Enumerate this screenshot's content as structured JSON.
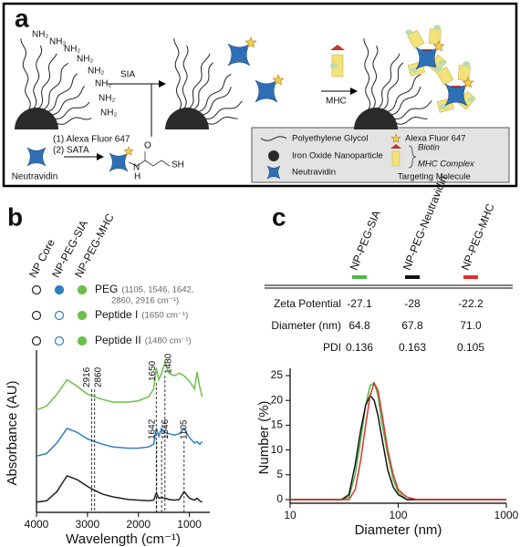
{
  "panel_a": {
    "label": "a",
    "amine_labels": [
      "NH₂",
      "NH₂",
      "NH₂",
      "NH₂",
      "NH₂",
      "NH₂",
      "NH₂",
      "NH₂"
    ],
    "step1": "SIA",
    "step2": "MHC",
    "reagents": [
      "(1) Alexa Fluor 647",
      "(2) SATA"
    ],
    "start": "Neutravidin",
    "sata_atoms": [
      "O",
      "N",
      "H",
      "SH"
    ],
    "legend": {
      "peg": "Polyethylene Glycol",
      "alexa": "Alexa Fluor 647",
      "iron": "Iron Oxide Nanoparticle",
      "neutravidin": "Neutravidin",
      "biotin": "Biotin",
      "mhc": "MHC Complex",
      "targeting": "Targeting Molecule"
    }
  },
  "panel_b": {
    "label": "b",
    "rows": [
      {
        "label": "PEG",
        "detail": [
          "(1105, 1546, 1642,",
          "2860, 2916 cm⁻¹)"
        ],
        "present": [
          false,
          true,
          true
        ]
      },
      {
        "label": "Peptide I",
        "detail": [
          "(1650 cm⁻¹)"
        ],
        "present": [
          false,
          false,
          true
        ]
      },
      {
        "label": "Peptide II",
        "detail": [
          "(1480 cm⁻¹)"
        ],
        "present": [
          false,
          false,
          true
        ]
      }
    ]
  },
  "panel_c": {
    "label": "c",
    "rows": [
      {
        "label": "Zeta Potential",
        "values": [
          "-27.1",
          "-28",
          "-22.2"
        ]
      },
      {
        "label": "Diameter (nm)",
        "values": [
          "64.8",
          "67.8",
          "71.0"
        ]
      },
      {
        "label": "PDI",
        "values": [
          "0.136",
          "0.163",
          "0.105"
        ]
      }
    ]
  },
  "chart_data": [
    {
      "type": "line",
      "xlabel": "Wavelength (cm⁻¹)",
      "ylabel": "Absorbance (AU)",
      "xlim": [
        4000,
        600
      ],
      "xticks": [
        4000,
        3000,
        2000,
        1000
      ],
      "ylim": [
        -0.5,
        11
      ],
      "peaks": [
        2916,
        2860,
        1650,
        1480,
        1642,
        1546,
        1105
      ],
      "x": [
        4000,
        3800,
        3600,
        3400,
        3200,
        3000,
        2916,
        2860,
        2700,
        2500,
        2200,
        2000,
        1800,
        1700,
        1650,
        1600,
        1546,
        1480,
        1400,
        1300,
        1200,
        1105,
        1000,
        900,
        850,
        800,
        750
      ],
      "series": [
        {
          "name": "NP Core",
          "color": "#222222",
          "values": [
            0,
            0.1,
            0.8,
            2.0,
            1.7,
            1.2,
            1.0,
            0.9,
            0.6,
            0.4,
            0.2,
            0.15,
            0.1,
            0.15,
            0.7,
            0.3,
            0.35,
            0.3,
            0.2,
            0.15,
            0.2,
            0.8,
            0.3,
            0.15,
            0.3,
            0.1,
            0
          ]
        },
        {
          "name": "NP-PEG-SIA",
          "color": "#2e7fc1",
          "values": [
            3.5,
            3.7,
            4.5,
            5.6,
            5.3,
            4.8,
            4.7,
            4.6,
            4.4,
            4.2,
            4.1,
            4.1,
            4.2,
            4.4,
            5.6,
            5.0,
            5.6,
            5.3,
            5.2,
            5.1,
            5.2,
            5.6,
            4.9,
            4.5,
            4.6,
            4.4,
            4.6
          ]
        },
        {
          "name": "NP-PEG-MHC",
          "color": "#6cc04a",
          "values": [
            7.0,
            7.3,
            8.2,
            9.3,
            8.8,
            8.2,
            8.1,
            8.0,
            7.8,
            7.6,
            7.6,
            7.7,
            8.0,
            8.6,
            10.2,
            9.3,
            9.8,
            10.6,
            9.8,
            9.6,
            9.8,
            9.6,
            9.2,
            8.6,
            9.9,
            8.8,
            8.0
          ]
        }
      ]
    },
    {
      "type": "line",
      "xlabel": "Diameter (nm)",
      "ylabel": "Number (%)",
      "xscale": "log",
      "xlim": [
        10,
        1000
      ],
      "xticks": [
        10,
        100,
        1000
      ],
      "ylim": [
        0,
        25
      ],
      "yticks": [
        0,
        5,
        10,
        15,
        20,
        25
      ],
      "x": [
        10,
        30,
        35,
        40,
        45,
        50,
        55,
        60,
        65,
        70,
        80,
        90,
        100,
        120,
        150,
        1000
      ],
      "series": [
        {
          "name": "NP-PEG-SIA",
          "color": "#4db848",
          "values": [
            0,
            0,
            0.5,
            5,
            12,
            19,
            23,
            23.5,
            21,
            16,
            9,
            4,
            1.5,
            0,
            0,
            0
          ]
        },
        {
          "name": "NP-PEG-Neutravidin",
          "color": "#111111",
          "values": [
            0,
            0,
            1,
            7,
            14,
            19,
            21,
            20,
            17,
            13,
            6,
            2.5,
            1,
            0,
            0,
            0
          ]
        },
        {
          "name": "NP-PEG-MHC",
          "color": "#e0302a",
          "values": [
            0,
            0,
            0,
            2,
            8,
            15,
            21,
            23.5,
            22,
            18,
            10,
            5,
            2,
            0.5,
            0,
            0
          ]
        }
      ]
    }
  ]
}
